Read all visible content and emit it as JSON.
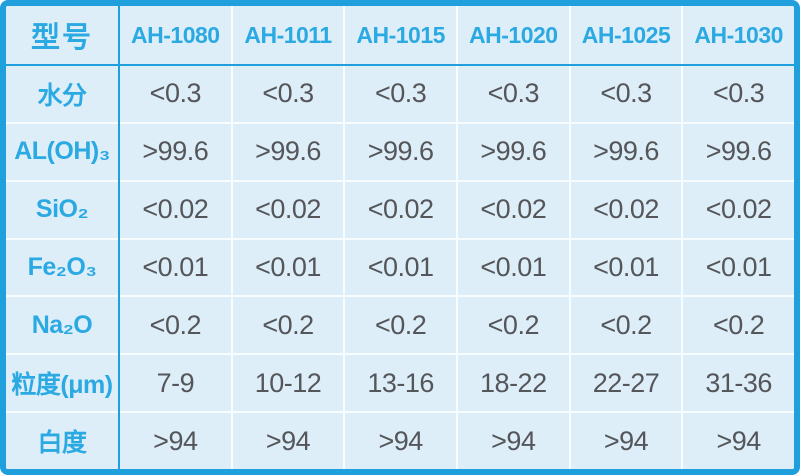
{
  "colors": {
    "border_blue": "#1f9fdc",
    "accent_text_blue": "#2ba9e2",
    "cell_background": "#ddeef9",
    "value_text": "#54565a",
    "separator_white": "#f7fcff"
  },
  "chart_data": {
    "type": "table",
    "title": "",
    "corner_label": "型号",
    "columns": [
      "AH-1080",
      "AH-1011",
      "AH-1015",
      "AH-1020",
      "AH-1025",
      "AH-1030"
    ],
    "rows": [
      {
        "label": "水分",
        "values": [
          "<0.3",
          "<0.3",
          "<0.3",
          "<0.3",
          "<0.3",
          "<0.3"
        ]
      },
      {
        "label": "AL(OH)₃",
        "values": [
          ">99.6",
          ">99.6",
          ">99.6",
          ">99.6",
          ">99.6",
          ">99.6"
        ]
      },
      {
        "label": "SiO₂",
        "values": [
          "<0.02",
          "<0.02",
          "<0.02",
          "<0.02",
          "<0.02",
          "<0.02"
        ]
      },
      {
        "label": "Fe₂O₃",
        "values": [
          "<0.01",
          "<0.01",
          "<0.01",
          "<0.01",
          "<0.01",
          "<0.01"
        ]
      },
      {
        "label": "Na₂O",
        "values": [
          "<0.2",
          "<0.2",
          "<0.2",
          "<0.2",
          "<0.2",
          "<0.2"
        ]
      },
      {
        "label": "粒度(μm)",
        "values": [
          "7-9",
          "10-12",
          "13-16",
          "18-22",
          "22-27",
          "31-36"
        ]
      },
      {
        "label": "白度",
        "values": [
          ">94",
          ">94",
          ">94",
          ">94",
          ">94",
          ">94"
        ]
      }
    ],
    "layout": {
      "header_row": true,
      "label_column": true,
      "grid": "on"
    }
  }
}
